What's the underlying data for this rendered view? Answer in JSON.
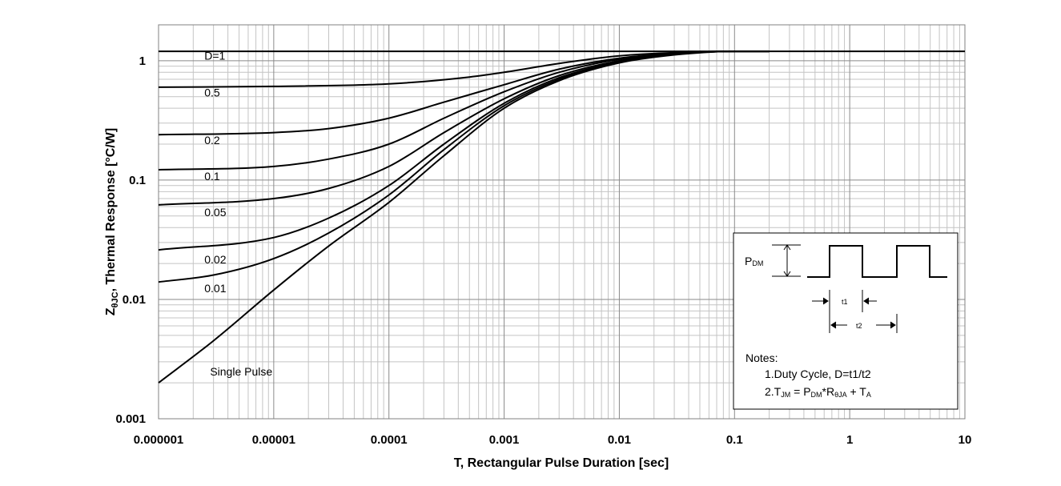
{
  "chart_data": {
    "type": "line",
    "x_scale": "log",
    "y_scale": "log",
    "xlim": [
      1e-06,
      10
    ],
    "ylim": [
      0.001,
      2
    ],
    "grid": true,
    "xlabel": "T, Rectangular Pulse Duration [sec]",
    "ylabel": {
      "prefix": "Z",
      "sub": "θJC",
      "rest": ", Thermal Response [°C/W]"
    },
    "x_ticks": [
      {
        "value": 1e-06,
        "label": "0.000001"
      },
      {
        "value": 1e-05,
        "label": "0.00001"
      },
      {
        "value": 0.0001,
        "label": "0.0001"
      },
      {
        "value": 0.001,
        "label": "0.001"
      },
      {
        "value": 0.01,
        "label": "0.01"
      },
      {
        "value": 0.1,
        "label": "0.1"
      },
      {
        "value": 1,
        "label": "1"
      },
      {
        "value": 10,
        "label": "10"
      }
    ],
    "y_ticks": [
      {
        "value": 0.001,
        "label": "0.001"
      },
      {
        "value": 0.01,
        "label": "0.01"
      },
      {
        "value": 0.1,
        "label": "0.1"
      },
      {
        "value": 1,
        "label": "1"
      }
    ],
    "series": [
      {
        "name": "D=1",
        "label_at": [
          2.5e-06,
          1.02
        ],
        "points": [
          [
            1e-06,
            1.2
          ],
          [
            10,
            1.2
          ]
        ]
      },
      {
        "name": "0.5",
        "label_at": [
          2.5e-06,
          0.5
        ],
        "points": [
          [
            1e-06,
            0.6
          ],
          [
            1e-05,
            0.61
          ],
          [
            0.0001,
            0.64
          ],
          [
            0.0005,
            0.73
          ],
          [
            0.001,
            0.8
          ],
          [
            0.003,
            0.95
          ],
          [
            0.01,
            1.1
          ],
          [
            0.03,
            1.17
          ],
          [
            0.1,
            1.2
          ],
          [
            0.2,
            1.2
          ]
        ]
      },
      {
        "name": "0.2",
        "label_at": [
          2.5e-06,
          0.2
        ],
        "points": [
          [
            1e-06,
            0.24
          ],
          [
            1e-05,
            0.25
          ],
          [
            3e-05,
            0.27
          ],
          [
            0.0001,
            0.33
          ],
          [
            0.0003,
            0.45
          ],
          [
            0.001,
            0.63
          ],
          [
            0.003,
            0.85
          ],
          [
            0.01,
            1.05
          ],
          [
            0.03,
            1.15
          ],
          [
            0.1,
            1.2
          ],
          [
            0.2,
            1.2
          ]
        ]
      },
      {
        "name": "0.1",
        "label_at": [
          2.5e-06,
          0.1
        ],
        "points": [
          [
            1e-06,
            0.122
          ],
          [
            1e-05,
            0.13
          ],
          [
            3e-05,
            0.15
          ],
          [
            0.0001,
            0.2
          ],
          [
            0.0003,
            0.33
          ],
          [
            0.001,
            0.55
          ],
          [
            0.003,
            0.8
          ],
          [
            0.01,
            1.03
          ],
          [
            0.03,
            1.15
          ],
          [
            0.1,
            1.2
          ],
          [
            0.2,
            1.2
          ]
        ]
      },
      {
        "name": "0.05",
        "label_at": [
          2.5e-06,
          0.05
        ],
        "points": [
          [
            1e-06,
            0.062
          ],
          [
            1e-05,
            0.07
          ],
          [
            3e-05,
            0.085
          ],
          [
            0.0001,
            0.13
          ],
          [
            0.0003,
            0.25
          ],
          [
            0.001,
            0.48
          ],
          [
            0.003,
            0.75
          ],
          [
            0.01,
            1.0
          ],
          [
            0.03,
            1.14
          ],
          [
            0.1,
            1.2
          ],
          [
            0.2,
            1.2
          ]
        ]
      },
      {
        "name": "0.02",
        "label_at": [
          2.5e-06,
          0.02
        ],
        "points": [
          [
            1e-06,
            0.026
          ],
          [
            1e-05,
            0.033
          ],
          [
            3e-05,
            0.048
          ],
          [
            0.0001,
            0.09
          ],
          [
            0.0003,
            0.2
          ],
          [
            0.001,
            0.44
          ],
          [
            0.003,
            0.72
          ],
          [
            0.01,
            0.98
          ],
          [
            0.03,
            1.13
          ],
          [
            0.1,
            1.2
          ],
          [
            0.2,
            1.2
          ]
        ]
      },
      {
        "name": "0.01",
        "label_at": [
          2.5e-06,
          0.0115
        ],
        "points": [
          [
            1e-06,
            0.014
          ],
          [
            3e-06,
            0.016
          ],
          [
            1e-05,
            0.022
          ],
          [
            3e-05,
            0.036
          ],
          [
            0.0001,
            0.075
          ],
          [
            0.0003,
            0.18
          ],
          [
            0.001,
            0.42
          ],
          [
            0.003,
            0.7
          ],
          [
            0.01,
            0.97
          ],
          [
            0.03,
            1.13
          ],
          [
            0.1,
            1.2
          ],
          [
            0.2,
            1.2
          ]
        ]
      },
      {
        "name": "Single Pulse",
        "label_at": [
          2.8e-06,
          0.0023
        ],
        "points": [
          [
            1e-06,
            0.002
          ],
          [
            3e-06,
            0.0045
          ],
          [
            1e-05,
            0.012
          ],
          [
            3e-05,
            0.028
          ],
          [
            0.0001,
            0.065
          ],
          [
            0.0003,
            0.16
          ],
          [
            0.001,
            0.4
          ],
          [
            0.003,
            0.68
          ],
          [
            0.01,
            0.96
          ],
          [
            0.03,
            1.12
          ],
          [
            0.1,
            1.2
          ],
          [
            0.2,
            1.2
          ]
        ]
      }
    ]
  },
  "inset": {
    "pdm_prefix": "P",
    "pdm_sub": "DM",
    "t1": "t1",
    "t2": "t2",
    "notes_title": "Notes:",
    "note1": "1.Duty  Cycle, D=t1/t2",
    "note2": {
      "p1": "2.T",
      "s1": "JM",
      "p2": " = P",
      "s2": "DM",
      "p3": "*R",
      "s3": "θJA",
      "p4": " + T",
      "s4": "A"
    }
  }
}
